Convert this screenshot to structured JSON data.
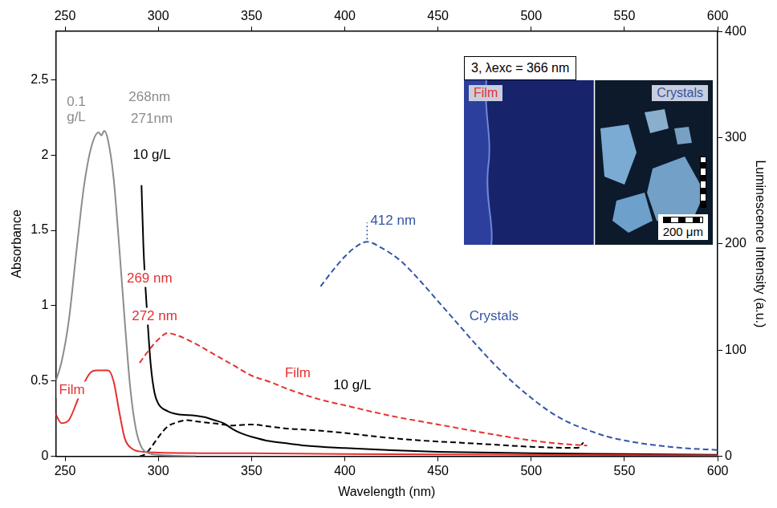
{
  "chart_data": {
    "type": "line",
    "x_label": "Wavelength (nm)",
    "y_label": "Absorbance",
    "y2_label": "Luminescence Intensity (a.u.)",
    "xlim": [
      245,
      600
    ],
    "xticks": [
      250,
      300,
      350,
      400,
      450,
      500,
      550,
      600
    ],
    "ylim": [
      0,
      2.82
    ],
    "yticks": [
      0,
      0.5,
      1,
      1.5,
      2,
      2.5
    ],
    "y2lim": [
      0,
      400
    ],
    "y2ticks": [
      0,
      100,
      200,
      300,
      400
    ],
    "grid": false,
    "series": [
      {
        "color": "#8c8c8c",
        "line_style": "solid",
        "axis": "y",
        "x": [
          245,
          248,
          252,
          256,
          260,
          264,
          268,
          269.5,
          271,
          273,
          276,
          279,
          282,
          285,
          288,
          291,
          295,
          300,
          320
        ],
        "values": [
          0.5,
          0.62,
          0.9,
          1.35,
          1.78,
          2.05,
          2.15,
          2.13,
          2.16,
          2.1,
          1.85,
          1.4,
          0.9,
          0.45,
          0.18,
          0.06,
          0.02,
          0.01,
          0
        ]
      },
      {
        "color": "#e53030",
        "line_style": "solid",
        "axis": "y",
        "x": [
          245,
          248,
          252,
          256,
          260,
          264,
          267,
          273,
          276,
          279,
          282,
          286,
          292,
          300,
          350,
          400,
          450,
          500,
          550,
          600
        ],
        "values": [
          0.28,
          0.22,
          0.24,
          0.35,
          0.48,
          0.56,
          0.57,
          0.57,
          0.5,
          0.3,
          0.12,
          0.05,
          0.03,
          0.025,
          0.02,
          0.015,
          0.012,
          0.01,
          0.008,
          0.006
        ]
      },
      {
        "color": "#000000",
        "line_style": "solid",
        "axis": "y",
        "x": [
          291,
          292,
          294,
          296,
          298,
          300,
          305,
          310,
          320,
          325,
          330,
          335,
          340,
          345,
          350,
          360,
          370,
          380,
          400,
          425,
          450,
          500,
          550,
          600
        ],
        "values": [
          1.8,
          1.4,
          0.95,
          0.6,
          0.42,
          0.35,
          0.3,
          0.28,
          0.27,
          0.26,
          0.24,
          0.22,
          0.18,
          0.15,
          0.13,
          0.1,
          0.085,
          0.07,
          0.055,
          0.04,
          0.03,
          0.02,
          0.015,
          0.01
        ]
      },
      {
        "color": "#e53030",
        "line_style": "dashed",
        "axis": "y2",
        "x": [
          290,
          295,
          300,
          305,
          310,
          320,
          330,
          340,
          350,
          360,
          370,
          380,
          390,
          400,
          425,
          450,
          475,
          500,
          515,
          530
        ],
        "values": [
          88,
          100,
          110,
          116,
          114,
          106,
          96,
          86,
          76,
          70,
          63,
          57,
          52,
          48,
          38,
          30,
          22,
          15,
          12,
          10
        ]
      },
      {
        "color": "#000000",
        "line_style": "dashed",
        "axis": "y2",
        "x": [
          290,
          293,
          296,
          300,
          305,
          310,
          315,
          320,
          330,
          340,
          350,
          360,
          370,
          380,
          400,
          420,
          440,
          460,
          480,
          500,
          520,
          525,
          528
        ],
        "values": [
          0,
          2,
          8,
          18,
          28,
          32,
          34,
          33,
          31,
          29,
          30,
          28,
          26,
          25,
          22,
          18,
          15,
          13,
          11,
          9,
          8,
          8,
          13
        ]
      },
      {
        "color": "#3555a5",
        "line_style": "dashed",
        "axis": "y2",
        "x": [
          387,
          395,
          400,
          405,
          412,
          420,
          430,
          440,
          450,
          460,
          470,
          480,
          490,
          500,
          510,
          520,
          530,
          540,
          550,
          560,
          580,
          600
        ],
        "values": [
          160,
          178,
          188,
          196,
          202,
          196,
          184,
          166,
          146,
          126,
          106,
          87,
          70,
          55,
          42,
          32,
          25,
          19,
          15,
          12,
          8,
          6
        ]
      }
    ],
    "annotations": [
      {
        "text": "0.1\ng/L",
        "x": 256,
        "y": 2.3,
        "axis": "y",
        "color": "#8c8c8c"
      },
      {
        "text": "268nm",
        "x": 295.3,
        "y": 2.38,
        "axis": "y",
        "color": "#8c8c8c"
      },
      {
        "text": "271nm",
        "x": 296.5,
        "y": 2.24,
        "axis": "y",
        "color": "#8c8c8c"
      },
      {
        "text": "10 g/L",
        "x": 296.5,
        "y": 2.0,
        "axis": "y",
        "color": "#000000"
      },
      {
        "text": "269 nm",
        "x": 295.3,
        "y": 1.18,
        "axis": "y",
        "color": "#e53030"
      },
      {
        "text": "272 nm",
        "x": 298,
        "y": 0.93,
        "axis": "y",
        "color": "#e53030"
      },
      {
        "text": "Film",
        "x": 253.7,
        "y": 0.44,
        "axis": "y",
        "color": "#e53030"
      },
      {
        "text": "Film",
        "x": 374.8,
        "y": 78,
        "axis": "y2",
        "color": "#e53030"
      },
      {
        "text": "10 g/L",
        "x": 404,
        "y": 67,
        "axis": "y2",
        "color": "#000000"
      },
      {
        "text": "Crystals",
        "x": 480,
        "y": 132,
        "axis": "y2",
        "color": "#3555a5"
      },
      {
        "text": "412 nm",
        "x": 412,
        "y": 202,
        "axis": "y2",
        "color": "#3555a5",
        "line_style": "dotted"
      }
    ],
    "inset": {
      "title": "3, λexc = 366 nm",
      "left_label": "Film",
      "right_label": "Crystals",
      "scale_bar": "200 μm"
    }
  }
}
